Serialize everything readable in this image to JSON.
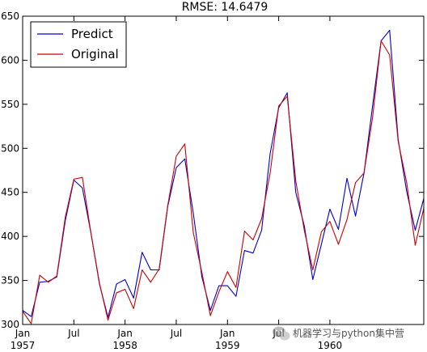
{
  "chart_data": {
    "type": "line",
    "title": "RMSE: 14.6479",
    "xlabel": "",
    "ylabel": "",
    "xlim": [
      0,
      47
    ],
    "ylim": [
      300,
      650
    ],
    "yticks": [
      300,
      350,
      400,
      450,
      500,
      550,
      600,
      650
    ],
    "xticks": [
      {
        "pos": 0,
        "label": "Jan",
        "year": "1957"
      },
      {
        "pos": 6,
        "label": "Jul",
        "year": ""
      },
      {
        "pos": 12,
        "label": "Jan",
        "year": "1958"
      },
      {
        "pos": 18,
        "label": "Jul",
        "year": ""
      },
      {
        "pos": 24,
        "label": "Jan",
        "year": "1959"
      },
      {
        "pos": 30,
        "label": "Jul",
        "year": ""
      },
      {
        "pos": 36,
        "label": "",
        "year": "1960"
      }
    ],
    "grid": false,
    "legend": "top-left",
    "series": [
      {
        "name": "Predict",
        "color": "#0000cc",
        "values": [
          316,
          309,
          348,
          349,
          354,
          418,
          464,
          455,
          404,
          346,
          308,
          346,
          351,
          330,
          382,
          362,
          362,
          434,
          478,
          488,
          426,
          354,
          316,
          344,
          344,
          332,
          384,
          381,
          407,
          494,
          546,
          563,
          450,
          412,
          351,
          391,
          431,
          408,
          466,
          423,
          472,
          548,
          622,
          634,
          510,
          451,
          407,
          443
        ]
      },
      {
        "name": "Original",
        "color": "#cc0000",
        "values": [
          315,
          301,
          356,
          348,
          355,
          422,
          465,
          467,
          404,
          347,
          305,
          336,
          340,
          318,
          362,
          348,
          363,
          435,
          491,
          505,
          404,
          359,
          310,
          337,
          360,
          342,
          406,
          396,
          420,
          472,
          548,
          559,
          463,
          407,
          362,
          405,
          417,
          391,
          419,
          461,
          472,
          535,
          622,
          606,
          508,
          461,
          390,
          432
        ]
      }
    ]
  },
  "watermark": {
    "text": "机器学习与python集中营",
    "icon": "wechat-icon"
  }
}
